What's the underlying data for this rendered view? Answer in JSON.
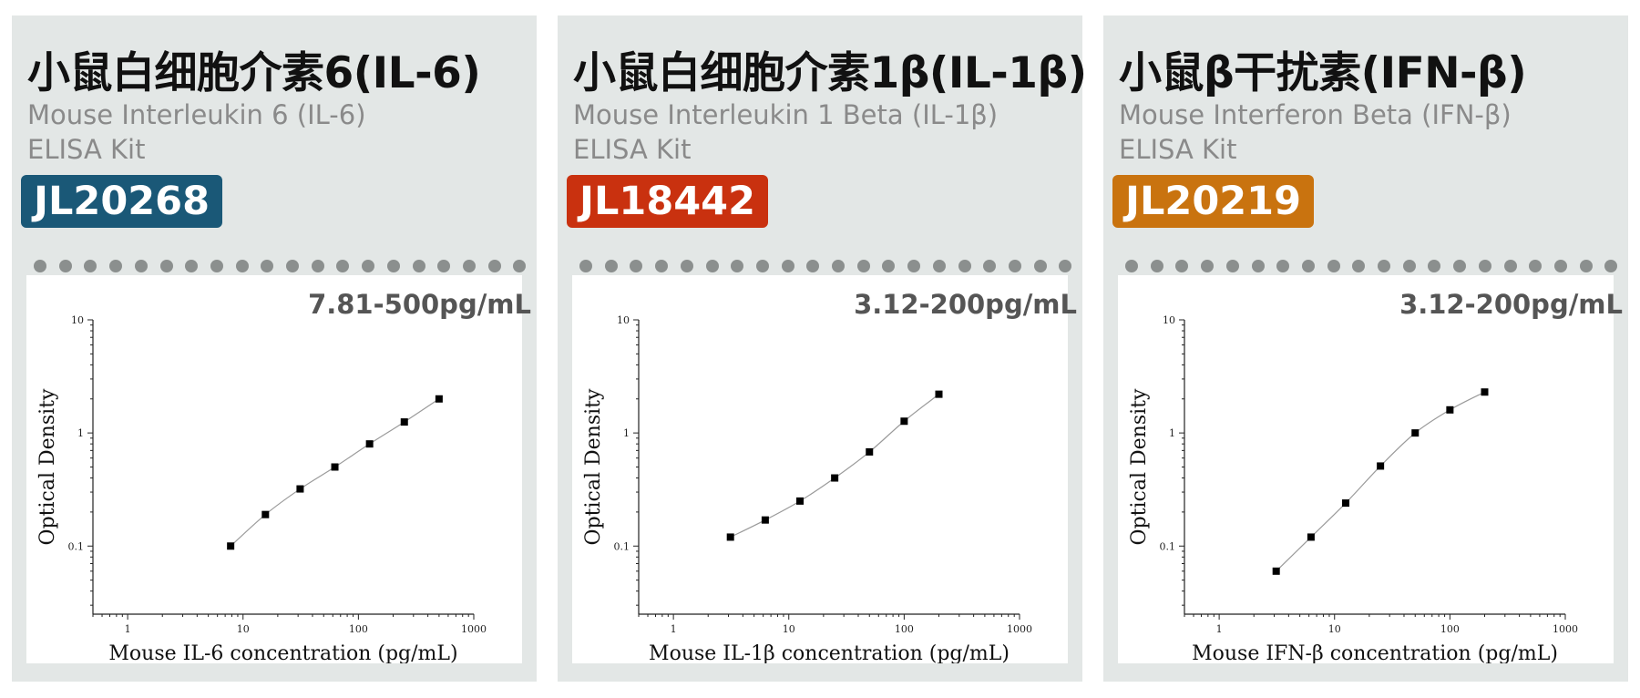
{
  "panels": [
    {
      "title": "小鼠白细胞介素6(IL-6)",
      "subtitle_line1": "Mouse Interleukin 6 (IL-6)",
      "subtitle_line2": "ELISA Kit",
      "catalog": "JL20268",
      "badge_color": "#1a5877",
      "range": "7.81-500pg/mL"
    },
    {
      "title": "小鼠白细胞介素1β(IL-1β)",
      "subtitle_line1": "Mouse Interleukin 1 Beta (IL-1β)",
      "subtitle_line2": "ELISA Kit",
      "catalog": "JL18442",
      "badge_color": "#c9310f",
      "range": "3.12-200pg/mL"
    },
    {
      "title": "小鼠β干扰素(IFN-β)",
      "subtitle_line1": "Mouse Interferon Beta (IFN-β)",
      "subtitle_line2": "ELISA Kit",
      "catalog": "JL20219",
      "badge_color": "#c9730f",
      "range": "3.12-200pg/mL"
    }
  ],
  "chart_data": [
    {
      "type": "scatter",
      "xlabel": "Mouse IL-6 concentration (pg/mL)",
      "ylabel": "Optical Density",
      "x_scale": "log",
      "y_scale": "log",
      "xlim": [
        0.5,
        1000
      ],
      "ylim": [
        0.025,
        10
      ],
      "x_ticks": [
        1,
        10,
        100,
        1000
      ],
      "y_ticks": [
        0.1,
        1,
        10
      ],
      "x": [
        7.81,
        15.63,
        31.25,
        62.5,
        125,
        250,
        500
      ],
      "y": [
        0.1,
        0.19,
        0.32,
        0.5,
        0.8,
        1.25,
        2.0
      ],
      "fit_line": true,
      "grid": false
    },
    {
      "type": "scatter",
      "xlabel": "Mouse IL-1β concentration (pg/mL)",
      "ylabel": "Optical Density",
      "x_scale": "log",
      "y_scale": "log",
      "xlim": [
        0.5,
        1000
      ],
      "ylim": [
        0.025,
        10
      ],
      "x_ticks": [
        1,
        10,
        100,
        1000
      ],
      "y_ticks": [
        0.1,
        1,
        10
      ],
      "x": [
        3.12,
        6.25,
        12.5,
        25,
        50,
        100,
        200
      ],
      "y": [
        0.12,
        0.17,
        0.25,
        0.4,
        0.68,
        1.27,
        2.2
      ],
      "fit_line": true,
      "grid": false
    },
    {
      "type": "scatter",
      "xlabel": "Mouse IFN-β concentration (pg/mL)",
      "ylabel": "Optical Density",
      "x_scale": "log",
      "y_scale": "log",
      "xlim": [
        0.5,
        1000
      ],
      "ylim": [
        0.025,
        10
      ],
      "x_ticks": [
        1,
        10,
        100,
        1000
      ],
      "y_ticks": [
        0.1,
        1,
        10
      ],
      "x": [
        3.12,
        6.25,
        12.5,
        25,
        50,
        100,
        200
      ],
      "y": [
        0.06,
        0.12,
        0.24,
        0.51,
        1.0,
        1.6,
        2.3
      ],
      "fit_line": true,
      "grid": false
    }
  ]
}
